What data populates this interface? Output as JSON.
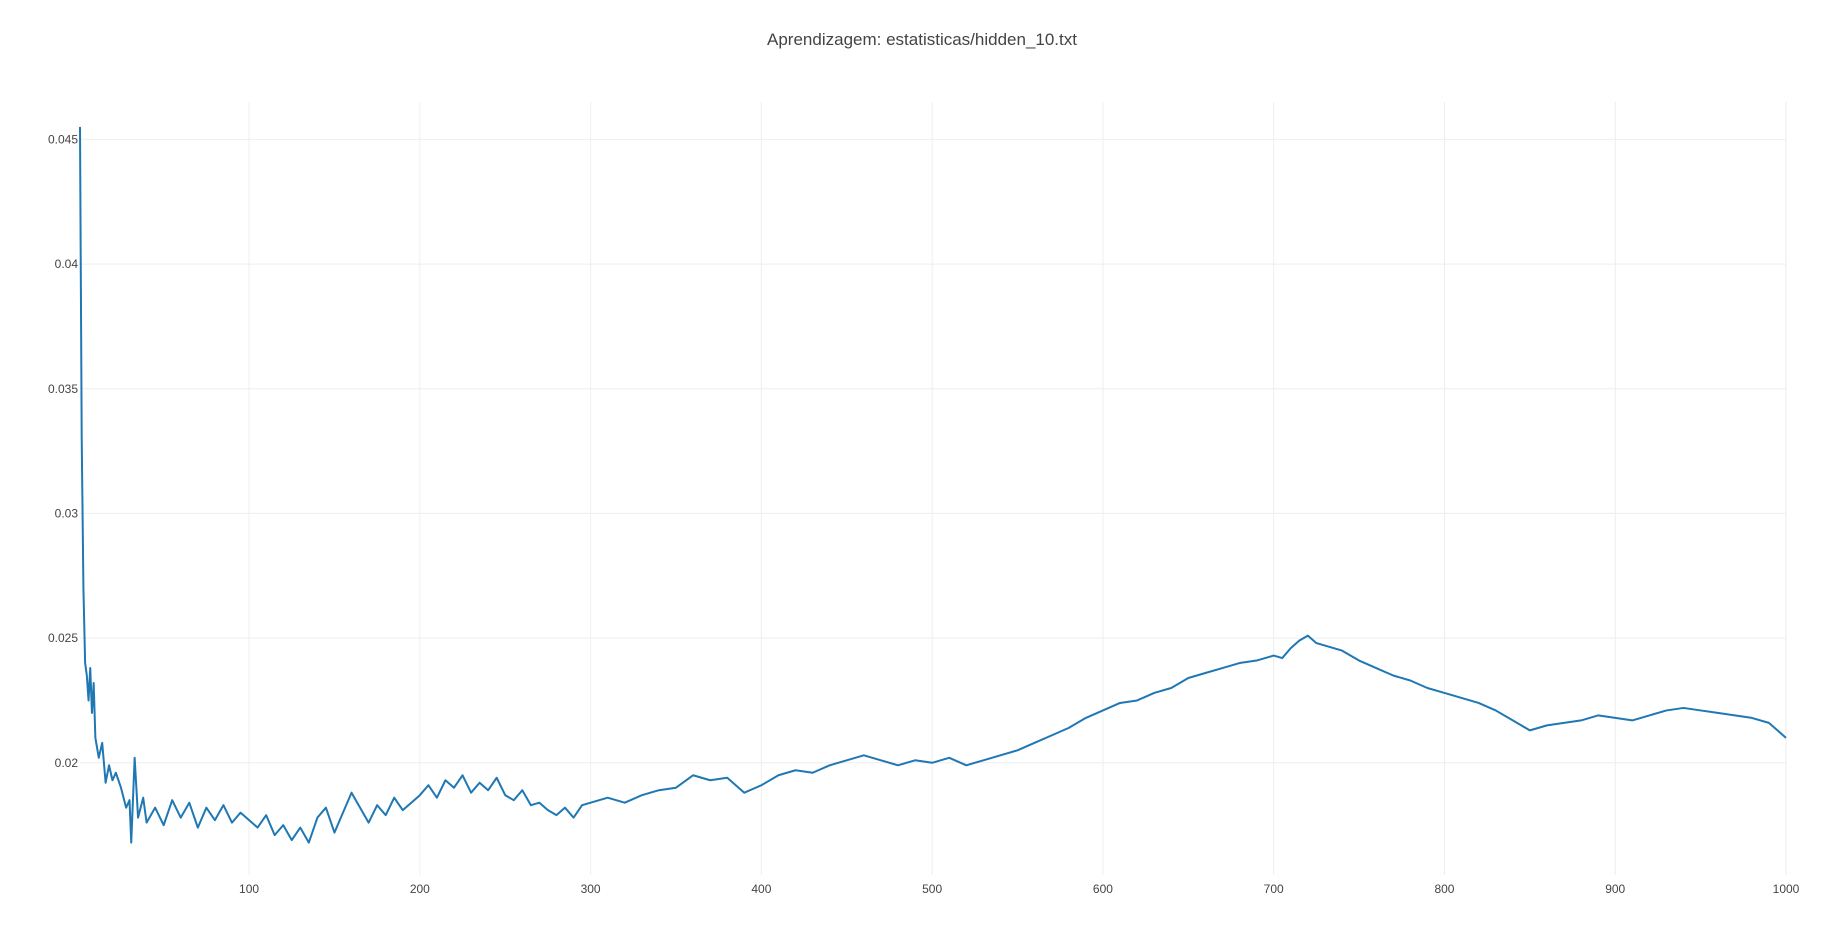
{
  "colors": {
    "series": "#1f77b4",
    "grid": "#eeeeee",
    "text": "#444444",
    "background": "#ffffff"
  },
  "chart_data": {
    "type": "line",
    "title": "Aprendizagem: estatisticas/hidden_10.txt",
    "xlabel": "",
    "ylabel": "",
    "xlim": [
      1,
      1000
    ],
    "ylim": [
      0.0155,
      0.0465
    ],
    "grid": true,
    "legend": "none",
    "x_ticks": [
      100,
      200,
      300,
      400,
      500,
      600,
      700,
      800,
      900,
      1000
    ],
    "x_tick_labels": [
      "100",
      "200",
      "300",
      "400",
      "500",
      "600",
      "700",
      "800",
      "900",
      "1000"
    ],
    "y_ticks": [
      0.02,
      0.025,
      0.03,
      0.035,
      0.04,
      0.045
    ],
    "y_tick_labels": [
      "0.02",
      "0.025",
      "0.03",
      "0.035",
      "0.04",
      "0.045"
    ],
    "series": [
      {
        "color": "#1f77b4",
        "x": [
          1,
          2,
          3,
          4,
          5,
          6,
          7,
          8,
          9,
          10,
          12,
          14,
          16,
          18,
          20,
          22,
          25,
          28,
          30,
          31,
          33,
          35,
          38,
          40,
          45,
          50,
          55,
          60,
          65,
          70,
          75,
          80,
          85,
          90,
          95,
          100,
          105,
          110,
          115,
          120,
          125,
          130,
          135,
          140,
          145,
          150,
          155,
          160,
          165,
          170,
          175,
          180,
          185,
          190,
          195,
          200,
          205,
          210,
          215,
          220,
          225,
          230,
          235,
          240,
          245,
          250,
          255,
          260,
          265,
          270,
          275,
          280,
          285,
          290,
          295,
          300,
          310,
          320,
          330,
          340,
          350,
          360,
          370,
          380,
          390,
          400,
          410,
          420,
          430,
          440,
          450,
          460,
          470,
          480,
          490,
          500,
          510,
          520,
          530,
          540,
          550,
          560,
          570,
          580,
          590,
          600,
          610,
          620,
          630,
          640,
          650,
          660,
          670,
          680,
          690,
          700,
          705,
          710,
          715,
          720,
          725,
          730,
          740,
          750,
          760,
          770,
          780,
          790,
          800,
          810,
          820,
          830,
          840,
          850,
          860,
          870,
          880,
          890,
          900,
          910,
          920,
          930,
          940,
          950,
          960,
          970,
          980,
          990,
          1000
        ],
        "values": [
          0.0455,
          0.033,
          0.027,
          0.024,
          0.0235,
          0.0225,
          0.0238,
          0.022,
          0.0232,
          0.021,
          0.0202,
          0.0208,
          0.0192,
          0.0199,
          0.0193,
          0.0196,
          0.019,
          0.0182,
          0.0185,
          0.0168,
          0.0202,
          0.0178,
          0.0186,
          0.0176,
          0.0182,
          0.0175,
          0.0185,
          0.0178,
          0.0184,
          0.0174,
          0.0182,
          0.0177,
          0.0183,
          0.0176,
          0.018,
          0.0177,
          0.0174,
          0.0179,
          0.0171,
          0.0175,
          0.0169,
          0.0174,
          0.0168,
          0.0178,
          0.0182,
          0.0172,
          0.018,
          0.0188,
          0.0182,
          0.0176,
          0.0183,
          0.0179,
          0.0186,
          0.0181,
          0.0184,
          0.0187,
          0.0191,
          0.0186,
          0.0193,
          0.019,
          0.0195,
          0.0188,
          0.0192,
          0.0189,
          0.0194,
          0.0187,
          0.0185,
          0.0189,
          0.0183,
          0.0184,
          0.0181,
          0.0179,
          0.0182,
          0.0178,
          0.0183,
          0.0184,
          0.0186,
          0.0184,
          0.0187,
          0.0189,
          0.019,
          0.0195,
          0.0193,
          0.0194,
          0.0188,
          0.0191,
          0.0195,
          0.0197,
          0.0196,
          0.0199,
          0.0201,
          0.0203,
          0.0201,
          0.0199,
          0.0201,
          0.02,
          0.0202,
          0.0199,
          0.0201,
          0.0203,
          0.0205,
          0.0208,
          0.0211,
          0.0214,
          0.0218,
          0.0221,
          0.0224,
          0.0225,
          0.0228,
          0.023,
          0.0234,
          0.0236,
          0.0238,
          0.024,
          0.0241,
          0.0243,
          0.0242,
          0.0246,
          0.0249,
          0.0251,
          0.0248,
          0.0247,
          0.0245,
          0.0241,
          0.0238,
          0.0235,
          0.0233,
          0.023,
          0.0228,
          0.0226,
          0.0224,
          0.0221,
          0.0217,
          0.0213,
          0.0215,
          0.0216,
          0.0217,
          0.0219,
          0.0218,
          0.0217,
          0.0219,
          0.0221,
          0.0222,
          0.0221,
          0.022,
          0.0219,
          0.0218,
          0.0216,
          0.021
        ]
      }
    ]
  }
}
